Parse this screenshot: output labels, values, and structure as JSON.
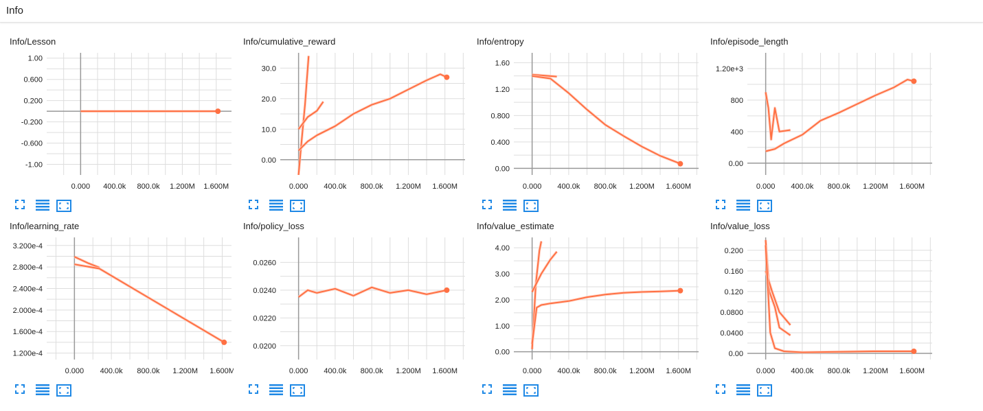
{
  "section": {
    "title": "Info"
  },
  "colors": {
    "series": "#ff7043",
    "smoothed_raw": "#ffccbc",
    "grid": "#dddddd",
    "axis": "#999999",
    "tool_icon": "#1e88e5"
  },
  "toolbar": {
    "icons": [
      "fullscreen-icon",
      "list-icon",
      "fit-domain-icon"
    ]
  },
  "x_ticks": [
    "0.000",
    "400.0k",
    "800.0k",
    "1.200M",
    "1.600M"
  ],
  "chart_data": [
    {
      "type": "line",
      "title": "Info/Lesson",
      "xlim": [
        -400000,
        1780000
      ],
      "ylim": [
        -1.2,
        1.1
      ],
      "y_ticks": [
        "1.00",
        "0.600",
        "0.200",
        "-0.200",
        "-0.600",
        "-1.00"
      ],
      "y_tick_values": [
        1.0,
        0.6,
        0.2,
        -0.2,
        -0.6,
        -1.0
      ],
      "series": [
        {
          "values": [
            [
              0,
              0
            ],
            [
              400000,
              0
            ],
            [
              800000,
              0
            ],
            [
              1200000,
              0
            ],
            [
              1620000,
              0
            ]
          ]
        }
      ],
      "end_marker": [
        1620000,
        0
      ]
    },
    {
      "type": "line",
      "title": "Info/cumulative_reward",
      "xlim": [
        -200000,
        1820000
      ],
      "ylim": [
        -5,
        35
      ],
      "y_ticks": [
        "30.0",
        "20.0",
        "10.0",
        "0.00"
      ],
      "y_tick_values": [
        30,
        20,
        10,
        0
      ],
      "series": [
        {
          "values": [
            [
              0,
              -5
            ],
            [
              30000,
              5
            ],
            [
              70000,
              18
            ],
            [
              110000,
              34
            ]
          ]
        },
        {
          "values": [
            [
              0,
              10
            ],
            [
              100000,
              14
            ],
            [
              200000,
              16
            ],
            [
              270000,
              19
            ]
          ]
        },
        {
          "values": [
            [
              0,
              3
            ],
            [
              100000,
              6
            ],
            [
              200000,
              8
            ],
            [
              400000,
              11
            ],
            [
              600000,
              15
            ],
            [
              800000,
              18
            ],
            [
              1000000,
              20
            ],
            [
              1200000,
              23
            ],
            [
              1400000,
              26
            ],
            [
              1550000,
              28
            ],
            [
              1620000,
              27
            ]
          ]
        }
      ],
      "end_marker": [
        1620000,
        27
      ]
    },
    {
      "type": "line",
      "title": "Info/entropy",
      "xlim": [
        -200000,
        1820000
      ],
      "ylim": [
        -0.1,
        1.75
      ],
      "y_ticks": [
        "1.60",
        "1.20",
        "0.800",
        "0.400",
        "0.00"
      ],
      "y_tick_values": [
        1.6,
        1.2,
        0.8,
        0.4,
        0.0
      ],
      "series": [
        {
          "values": [
            [
              0,
              1.42
            ],
            [
              270000,
              1.39
            ]
          ]
        },
        {
          "values": [
            [
              0,
              1.4
            ],
            [
              200000,
              1.36
            ],
            [
              400000,
              1.14
            ],
            [
              600000,
              0.89
            ],
            [
              800000,
              0.66
            ],
            [
              1000000,
              0.49
            ],
            [
              1200000,
              0.33
            ],
            [
              1400000,
              0.19
            ],
            [
              1620000,
              0.07
            ]
          ]
        }
      ],
      "end_marker": [
        1620000,
        0.07
      ]
    },
    {
      "type": "line",
      "title": "Info/episode_length",
      "xlim": [
        -200000,
        1820000
      ],
      "ylim": [
        -150,
        1400
      ],
      "y_ticks": [
        "1.20e+3",
        "800",
        "400",
        "0.00"
      ],
      "y_tick_values": [
        1200,
        800,
        400,
        0
      ],
      "series": [
        {
          "values": [
            [
              0,
              900
            ],
            [
              30000,
              700
            ],
            [
              60000,
              300
            ],
            [
              100000,
              700
            ],
            [
              150000,
              400
            ],
            [
              270000,
              420
            ]
          ]
        },
        {
          "values": [
            [
              0,
              150
            ],
            [
              100000,
              180
            ],
            [
              200000,
              250
            ],
            [
              400000,
              360
            ],
            [
              600000,
              540
            ],
            [
              800000,
              640
            ],
            [
              1000000,
              750
            ],
            [
              1200000,
              860
            ],
            [
              1400000,
              960
            ],
            [
              1550000,
              1060
            ],
            [
              1620000,
              1040
            ]
          ]
        }
      ],
      "end_marker": [
        1620000,
        1040
      ]
    },
    {
      "type": "line",
      "title": "Info/learning_rate",
      "xlim": [
        -300000,
        1700000
      ],
      "ylim": [
        0.000108,
        0.000335
      ],
      "y_ticks": [
        "3.200e-4",
        "2.800e-4",
        "2.400e-4",
        "2.000e-4",
        "1.600e-4",
        "1.200e-4"
      ],
      "y_tick_values": [
        0.00032,
        0.00028,
        0.00024,
        0.0002,
        0.00016,
        0.00012
      ],
      "series": [
        {
          "values": [
            [
              0,
              0.000299
            ],
            [
              150000,
              0.000287
            ],
            [
              270000,
              0.000279
            ]
          ]
        },
        {
          "values": [
            [
              0,
              0.000285
            ],
            [
              270000,
              0.000277
            ],
            [
              1620000,
              0.00014
            ]
          ]
        }
      ],
      "end_marker": [
        1620000,
        0.00014
      ]
    },
    {
      "type": "line",
      "title": "Info/policy_loss",
      "xlim": [
        -200000,
        1820000
      ],
      "ylim": [
        0.019,
        0.0278
      ],
      "y_ticks": [
        "0.0260",
        "0.0240",
        "0.0220",
        "0.0200"
      ],
      "y_tick_values": [
        0.026,
        0.024,
        0.022,
        0.02
      ],
      "series": [
        {
          "values": [
            [
              0,
              0.0235
            ],
            [
              100000,
              0.024
            ],
            [
              200000,
              0.0238
            ],
            [
              400000,
              0.0241
            ],
            [
              600000,
              0.0236
            ],
            [
              800000,
              0.0242
            ],
            [
              1000000,
              0.0238
            ],
            [
              1200000,
              0.024
            ],
            [
              1400000,
              0.0237
            ],
            [
              1620000,
              0.024
            ]
          ]
        }
      ],
      "end_marker": [
        1620000,
        0.024
      ]
    },
    {
      "type": "line",
      "title": "Info/value_estimate",
      "xlim": [
        -200000,
        1820000
      ],
      "ylim": [
        -0.3,
        4.4
      ],
      "y_ticks": [
        "4.00",
        "3.00",
        "2.00",
        "1.00",
        "0.00"
      ],
      "y_tick_values": [
        4,
        3,
        2,
        1,
        0
      ],
      "series": [
        {
          "values": [
            [
              0,
              0.1
            ],
            [
              40000,
              2.6
            ],
            [
              80000,
              3.9
            ],
            [
              100000,
              4.25
            ]
          ]
        },
        {
          "values": [
            [
              0,
              2.3
            ],
            [
              100000,
              3.0
            ],
            [
              200000,
              3.55
            ],
            [
              270000,
              3.85
            ]
          ]
        },
        {
          "values": [
            [
              0,
              0.3
            ],
            [
              50000,
              1.7
            ],
            [
              100000,
              1.8
            ],
            [
              200000,
              1.86
            ],
            [
              400000,
              1.95
            ],
            [
              600000,
              2.1
            ],
            [
              800000,
              2.2
            ],
            [
              1000000,
              2.27
            ],
            [
              1200000,
              2.3
            ],
            [
              1400000,
              2.32
            ],
            [
              1620000,
              2.35
            ]
          ]
        }
      ],
      "end_marker": [
        1620000,
        2.35
      ]
    },
    {
      "type": "line",
      "title": "Info/value_loss",
      "xlim": [
        -200000,
        1820000
      ],
      "ylim": [
        -0.012,
        0.225
      ],
      "y_ticks": [
        "0.200",
        "0.160",
        "0.120",
        "0.0800",
        "0.0400",
        "0.00"
      ],
      "y_tick_values": [
        0.2,
        0.16,
        0.12,
        0.08,
        0.04,
        0.0
      ],
      "series": [
        {
          "values": [
            [
              0,
              0.22
            ],
            [
              40000,
              0.12
            ],
            [
              100000,
              0.09
            ],
            [
              150000,
              0.05
            ],
            [
              270000,
              0.035
            ]
          ]
        },
        {
          "values": [
            [
              0,
              0.16
            ],
            [
              70000,
              0.12
            ],
            [
              150000,
              0.08
            ],
            [
              270000,
              0.055
            ]
          ]
        },
        {
          "values": [
            [
              0,
              0.21
            ],
            [
              50000,
              0.04
            ],
            [
              100000,
              0.01
            ],
            [
              200000,
              0.004
            ],
            [
              400000,
              0.002
            ],
            [
              800000,
              0.003
            ],
            [
              1200000,
              0.004
            ],
            [
              1620000,
              0.004
            ]
          ]
        }
      ],
      "end_marker": [
        1620000,
        0.004
      ]
    }
  ]
}
